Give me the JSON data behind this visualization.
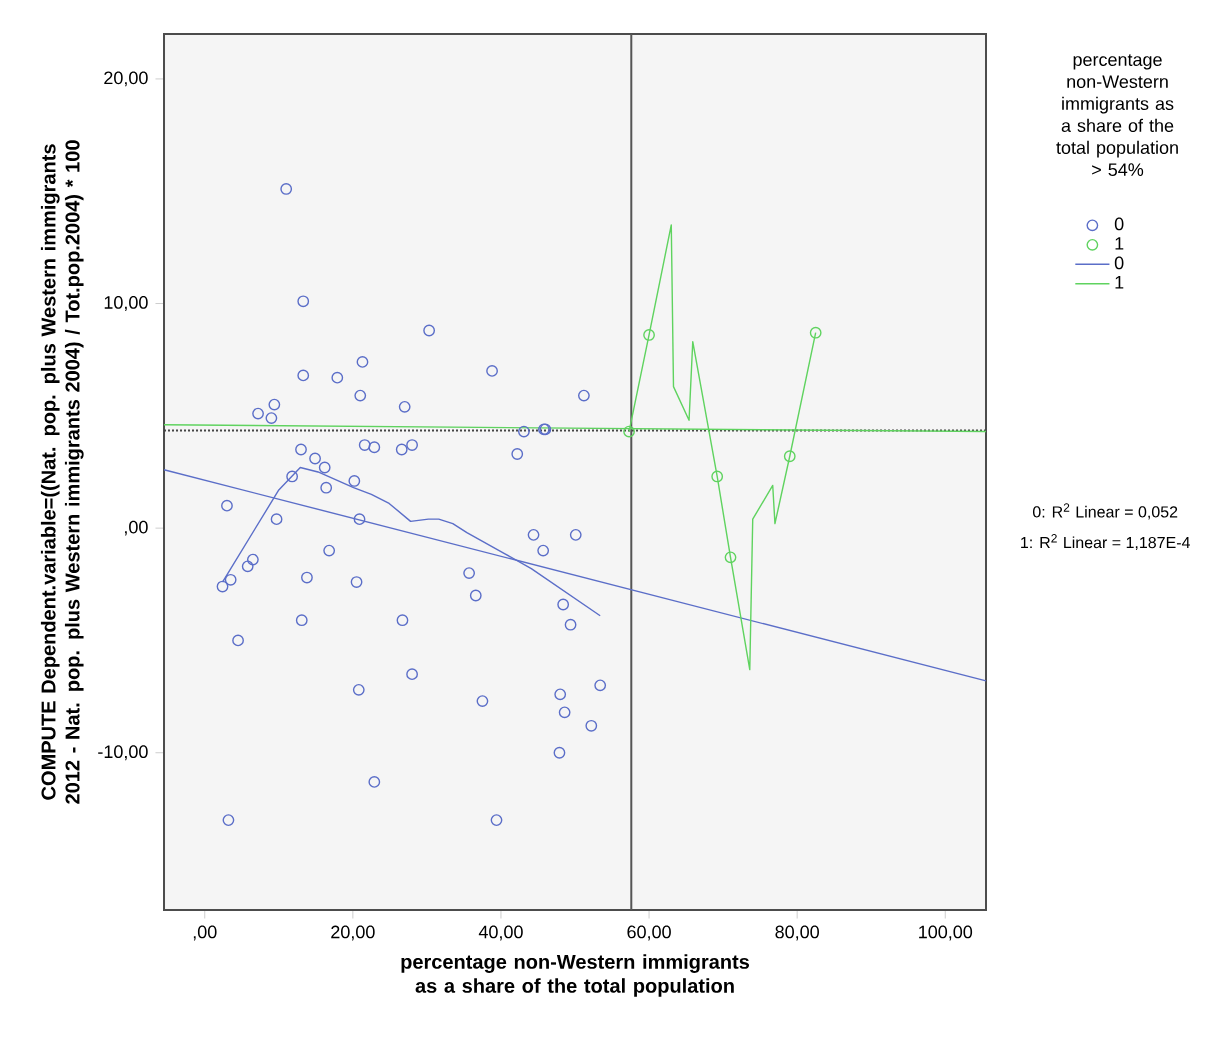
{
  "chart_data": {
    "type": "scatter",
    "ylabel": "COMPUTE Dependent.variable=((Nat. pop. plus Western immigrants 2012 - Nat. pop. plus Western immigrants 2004) / Tot.pop.2004) * 100",
    "xlabel": "percentage non-Western immigrants as a share of the total population",
    "legend_title": "percentage non-Western immigrants as a share of the total population > 54%",
    "xlim": [
      -5.5,
      105.5
    ],
    "ylim": [
      -17,
      22
    ],
    "xticks": [
      {
        "value": 0,
        "label": ",00"
      },
      {
        "value": 20,
        "label": "20,00"
      },
      {
        "value": 40,
        "label": "40,00"
      },
      {
        "value": 60,
        "label": "60,00"
      },
      {
        "value": 80,
        "label": "80,00"
      },
      {
        "value": 100,
        "label": "100,00"
      }
    ],
    "yticks": [
      {
        "value": -10,
        "label": "-10,00"
      },
      {
        "value": 0,
        "label": ",00"
      },
      {
        "value": 10,
        "label": "10,00"
      },
      {
        "value": 20,
        "label": "20,00"
      }
    ],
    "grid": false,
    "legend": "right",
    "annotations": [
      "0: R$^{2}$ Linear = 0,052",
      "1: R$^{2}$ Linear = 1,187E-4"
    ],
    "ref_lines": [
      {
        "axis": "x",
        "value": 57.6,
        "color": "#555555",
        "line_style": "solid"
      },
      {
        "axis": "y",
        "value": 4.35,
        "color": "#444444",
        "line_style": "dotted"
      }
    ],
    "series": [
      {
        "name": "0",
        "color": "#5b6ec8",
        "marker": "circle",
        "x": [
          11.0,
          13.3,
          30.3,
          21.3,
          13.3,
          17.9,
          38.8,
          21.0,
          51.2,
          9.4,
          7.2,
          9.0,
          27.0,
          43.1,
          45.8,
          46.0,
          42.2,
          13.0,
          21.6,
          22.9,
          26.6,
          28.0,
          14.9,
          16.2,
          11.8,
          16.4,
          20.2,
          3.0,
          9.7,
          20.9,
          44.4,
          45.7,
          50.1,
          16.8,
          6.5,
          5.8,
          3.5,
          2.4,
          13.8,
          20.5,
          35.7,
          36.6,
          48.4,
          49.4,
          13.1,
          26.7,
          4.5,
          28.0,
          20.8,
          53.4,
          37.5,
          48.0,
          48.6,
          52.2,
          47.9,
          22.9,
          3.2,
          39.4
        ],
        "values": [
          15.1,
          10.1,
          8.8,
          7.4,
          6.8,
          6.7,
          7.0,
          5.9,
          5.9,
          5.5,
          5.1,
          4.9,
          5.4,
          4.3,
          4.4,
          4.4,
          3.3,
          3.5,
          3.7,
          3.6,
          3.5,
          3.7,
          3.1,
          2.7,
          2.3,
          1.8,
          2.1,
          1.0,
          0.4,
          0.4,
          -0.3,
          -1.0,
          -0.3,
          -1.0,
          -1.4,
          -1.7,
          -2.3,
          -2.6,
          -2.2,
          -2.4,
          -2.0,
          -3.0,
          -3.4,
          -4.3,
          -4.1,
          -4.1,
          -5.0,
          -6.5,
          -7.2,
          -7.0,
          -7.7,
          -7.4,
          -8.2,
          -8.8,
          -10.0,
          -11.3,
          -13.0,
          -13.0
        ]
      },
      {
        "name": "1",
        "color": "#5fd35f",
        "marker": "circle",
        "x": [
          57.3,
          60.0,
          69.2,
          71.0,
          79.0,
          82.5
        ],
        "values": [
          4.3,
          8.6,
          2.3,
          -1.3,
          3.2,
          8.7
        ]
      },
      {
        "name": "0",
        "type": "line",
        "color": "#5b6ec8",
        "marker": "none",
        "x": [
          -5.5,
          105.5
        ],
        "values": [
          2.6,
          -6.8
        ]
      },
      {
        "name": "1",
        "type": "line",
        "color": "#5fd35f",
        "marker": "none",
        "x": [
          -5.5,
          105.5
        ],
        "values": [
          4.6,
          4.3
        ]
      },
      {
        "type": "line",
        "color": "#5b6ec8",
        "marker": "none",
        "x": [
          2.4,
          10.0,
          12.9,
          15.3,
          20.1,
          22.5,
          24.9,
          27.8,
          30.2,
          31.6,
          33.5,
          35.4,
          40.3,
          44.1,
          53.4
        ],
        "values": [
          -2.4,
          1.7,
          2.7,
          2.5,
          1.8,
          1.5,
          1.1,
          0.3,
          0.4,
          0.4,
          0.2,
          -0.2,
          -1.1,
          -1.8,
          -3.9
        ]
      },
      {
        "type": "line",
        "color": "#5fd35f",
        "marker": "none",
        "x": [
          57.3,
          60.0,
          63.0,
          63.3,
          65.4,
          65.9,
          69.2,
          71.0,
          73.6,
          74.0,
          76.7,
          77.0,
          79.0,
          82.5
        ],
        "values": [
          4.3,
          8.6,
          13.5,
          6.3,
          4.8,
          8.3,
          2.3,
          -1.3,
          -6.3,
          0.4,
          1.9,
          0.2,
          3.2,
          8.7
        ]
      }
    ]
  }
}
